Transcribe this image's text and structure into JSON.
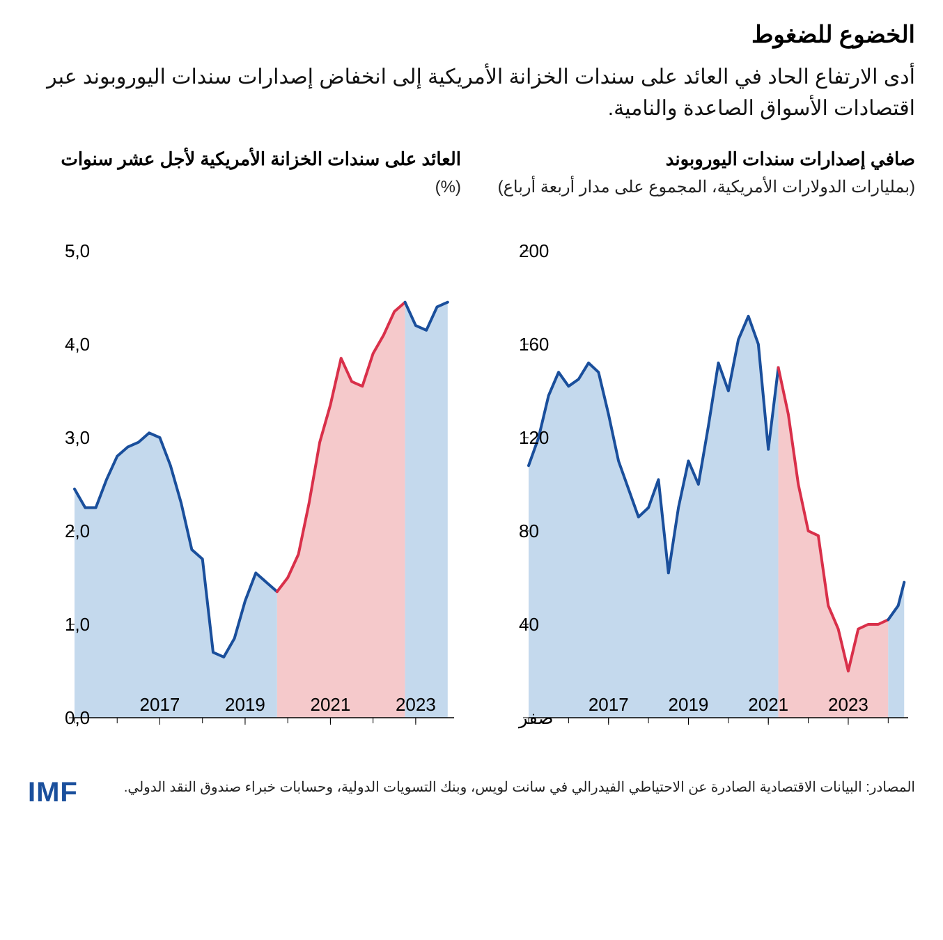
{
  "title": "الخضوع للضغوط",
  "subtitle": "أدى الارتفاع الحاد في العائد على سندات الخزانة الأمريكية إلى انخفاض إصدارات سندات اليوروبوند عبر اقتصادات الأسواق الصاعدة والنامية.",
  "source": "المصادر: البيانات الاقتصادية الصادرة عن الاحتياطي الفيدرالي في سانت لويس، وبنك التسويات الدولية، وحسابات خبراء صندوق النقد الدولي.",
  "logo": "IMF",
  "colors": {
    "line_blue": "#1a4f9c",
    "line_red": "#d9304a",
    "fill_blue": "#c4d9ed",
    "fill_red": "#f5c9cb",
    "axis": "#000000",
    "text": "#000000",
    "gridline": "#999999"
  },
  "chart_left": {
    "title": "العائد على سندات الخزانة الأمريكية لأجل عشر سنوات",
    "subtitle_unit": "(%)",
    "type": "area-line",
    "x_range": [
      2015,
      2023.9
    ],
    "y_range": [
      0,
      5.0
    ],
    "y_ticks": [
      0.0,
      1.0,
      2.0,
      3.0,
      4.0,
      5.0
    ],
    "y_tick_labels": [
      "0,0",
      "1,0",
      "2,0",
      "3,0",
      "4,0",
      "5,0"
    ],
    "x_tick_labels": [
      {
        "x": 2017,
        "label": "2017"
      },
      {
        "x": 2019,
        "label": "2019"
      },
      {
        "x": 2021,
        "label": "2021"
      },
      {
        "x": 2023,
        "label": "2023"
      }
    ],
    "line_width": 4,
    "label_fontsize": 26,
    "segment1": {
      "color_line": "#1a4f9c",
      "color_fill": "#c4d9ed",
      "points": [
        [
          2015.0,
          2.45
        ],
        [
          2015.25,
          2.25
        ],
        [
          2015.5,
          2.25
        ],
        [
          2015.75,
          2.55
        ],
        [
          2016.0,
          2.8
        ],
        [
          2016.25,
          2.9
        ],
        [
          2016.5,
          2.95
        ],
        [
          2016.75,
          3.05
        ],
        [
          2017.0,
          3.0
        ],
        [
          2017.25,
          2.7
        ],
        [
          2017.5,
          2.3
        ],
        [
          2017.75,
          1.8
        ],
        [
          2018.0,
          1.7
        ],
        [
          2018.25,
          0.7
        ],
        [
          2018.5,
          0.65
        ],
        [
          2018.75,
          0.85
        ],
        [
          2019.0,
          1.25
        ],
        [
          2019.25,
          1.55
        ],
        [
          2019.5,
          1.45
        ],
        [
          2019.75,
          1.35
        ]
      ]
    },
    "segment2": {
      "color_line": "#d9304a",
      "color_fill": "#f5c9cb",
      "points": [
        [
          2019.75,
          1.35
        ],
        [
          2020.0,
          1.5
        ],
        [
          2020.25,
          1.75
        ],
        [
          2020.5,
          2.3
        ],
        [
          2020.75,
          2.95
        ],
        [
          2021.0,
          3.35
        ],
        [
          2021.25,
          3.85
        ],
        [
          2021.5,
          3.6
        ],
        [
          2021.75,
          3.55
        ],
        [
          2022.0,
          3.9
        ],
        [
          2022.25,
          4.1
        ],
        [
          2022.5,
          4.35
        ],
        [
          2022.75,
          4.45
        ]
      ]
    },
    "segment3": {
      "color_line": "#1a4f9c",
      "color_fill": "#c4d9ed",
      "points": [
        [
          2022.75,
          4.45
        ],
        [
          2023.0,
          4.2
        ],
        [
          2023.25,
          4.15
        ],
        [
          2023.5,
          4.4
        ],
        [
          2023.75,
          4.45
        ]
      ]
    }
  },
  "chart_right": {
    "title": "صافي إصدارات سندات اليوروبوند",
    "subtitle_unit": "(بمليارات الدولارات الأمريكية، المجموع على مدار أربعة أرباع)",
    "type": "area-line",
    "x_range": [
      2015,
      2024.5
    ],
    "y_range": [
      0,
      200
    ],
    "y_ticks": [
      0,
      40,
      80,
      120,
      160,
      200
    ],
    "y_tick_labels": [
      "صفر",
      "40",
      "80",
      "120",
      "160",
      "200"
    ],
    "x_tick_labels": [
      {
        "x": 2017,
        "label": "2017"
      },
      {
        "x": 2019,
        "label": "2019"
      },
      {
        "x": 2021,
        "label": "2021"
      },
      {
        "x": 2023,
        "label": "2023"
      }
    ],
    "line_width": 4,
    "label_fontsize": 26,
    "segment1": {
      "color_line": "#1a4f9c",
      "color_fill": "#c4d9ed",
      "points": [
        [
          2015.0,
          108
        ],
        [
          2015.25,
          120
        ],
        [
          2015.5,
          138
        ],
        [
          2015.75,
          148
        ],
        [
          2016.0,
          142
        ],
        [
          2016.25,
          145
        ],
        [
          2016.5,
          152
        ],
        [
          2016.75,
          148
        ],
        [
          2017.0,
          130
        ],
        [
          2017.25,
          110
        ],
        [
          2017.5,
          98
        ],
        [
          2017.75,
          86
        ],
        [
          2018.0,
          90
        ],
        [
          2018.25,
          102
        ],
        [
          2018.5,
          62
        ],
        [
          2018.75,
          90
        ],
        [
          2019.0,
          110
        ],
        [
          2019.25,
          100
        ],
        [
          2019.5,
          125
        ],
        [
          2019.75,
          152
        ],
        [
          2020.0,
          140
        ],
        [
          2020.25,
          162
        ],
        [
          2020.5,
          172
        ],
        [
          2020.75,
          160
        ],
        [
          2021.0,
          115
        ],
        [
          2021.25,
          150
        ]
      ]
    },
    "segment2": {
      "color_line": "#d9304a",
      "color_fill": "#f5c9cb",
      "points": [
        [
          2021.25,
          150
        ],
        [
          2021.5,
          130
        ],
        [
          2021.75,
          100
        ],
        [
          2022.0,
          80
        ],
        [
          2022.25,
          78
        ],
        [
          2022.5,
          48
        ],
        [
          2022.75,
          38
        ],
        [
          2023.0,
          20
        ],
        [
          2023.25,
          38
        ],
        [
          2023.5,
          40
        ],
        [
          2023.75,
          40
        ],
        [
          2024.0,
          42
        ]
      ]
    },
    "segment3": {
      "color_line": "#1a4f9c",
      "color_fill": "#c4d9ed",
      "points": [
        [
          2024.0,
          42
        ],
        [
          2024.25,
          48
        ],
        [
          2024.4,
          58
        ]
      ]
    }
  }
}
